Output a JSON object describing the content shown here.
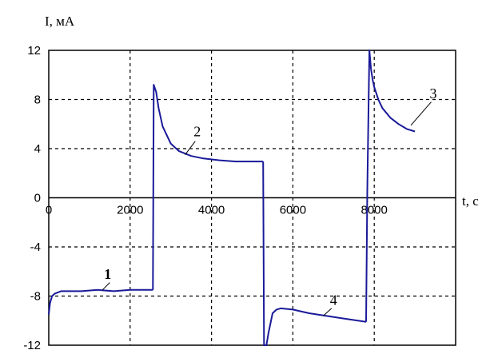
{
  "chart_data": {
    "type": "line",
    "ylabel": "I, мА",
    "xlabel": "t, с",
    "xlim": [
      0,
      10000
    ],
    "ylim": [
      -12,
      12
    ],
    "x_ticks": [
      0,
      2000,
      4000,
      6000,
      8000
    ],
    "x_tick_labels": [
      "0",
      "2000",
      "4000",
      "6000",
      "8000"
    ],
    "y_ticks": [
      12,
      8,
      4,
      0,
      -4,
      -8,
      -12
    ],
    "y_tick_labels": [
      "12",
      "8",
      "4",
      "0",
      "-4",
      "-8",
      "-12"
    ],
    "grid": true,
    "line_color": "#1a1a99",
    "series": [
      {
        "name": "1",
        "x": [
          0,
          30,
          80,
          150,
          300,
          500,
          800,
          1200,
          1600,
          2000,
          2300,
          2560
        ],
        "y": [
          -9.5,
          -8.6,
          -8.0,
          -7.8,
          -7.6,
          -7.6,
          -7.6,
          -7.5,
          -7.6,
          -7.5,
          -7.5,
          -7.5
        ]
      },
      {
        "name": "2",
        "x": [
          2560,
          2580,
          2640,
          2700,
          2800,
          3000,
          3200,
          3500,
          3800,
          4200,
          4600,
          5000,
          5270
        ],
        "y": [
          -7.5,
          9.2,
          8.6,
          7.3,
          5.8,
          4.4,
          3.8,
          3.4,
          3.2,
          3.05,
          2.95,
          2.95,
          2.95
        ]
      },
      {
        "name": "4",
        "x": [
          5270,
          5290,
          5350,
          5400,
          5500,
          5600,
          5700,
          6000,
          6400,
          6800,
          7200,
          7600,
          7800
        ],
        "y": [
          2.95,
          -12,
          -12,
          -11,
          -9.4,
          -9.1,
          -9.0,
          -9.1,
          -9.4,
          -9.6,
          -9.8,
          -10.0,
          -10.1
        ]
      },
      {
        "name": "3",
        "x": [
          7800,
          7830,
          7880,
          7920,
          7960,
          8000,
          8100,
          8200,
          8400,
          8600,
          8800,
          9000
        ],
        "y": [
          -10.1,
          0.6,
          12,
          10.5,
          9.6,
          9.0,
          8.0,
          7.3,
          6.5,
          6.0,
          5.6,
          5.4
        ]
      }
    ],
    "curve_labels": [
      {
        "text": "1",
        "bold": true,
        "x": 1450,
        "y": -6.6,
        "lead": [
          [
            1500,
            -6.9
          ],
          [
            1320,
            -7.5
          ]
        ]
      },
      {
        "text": "2",
        "bold": false,
        "x": 3650,
        "y": 5.0,
        "lead": [
          [
            3600,
            4.6
          ],
          [
            3350,
            3.5
          ]
        ]
      },
      {
        "text": "4",
        "bold": false,
        "x": 7000,
        "y": -8.7,
        "lead": [
          [
            6950,
            -9.0
          ],
          [
            6750,
            -9.6
          ]
        ]
      },
      {
        "text": "3",
        "bold": false,
        "x": 9450,
        "y": 8.1,
        "lead": [
          [
            9400,
            7.8
          ],
          [
            8900,
            5.9
          ]
        ]
      }
    ]
  }
}
